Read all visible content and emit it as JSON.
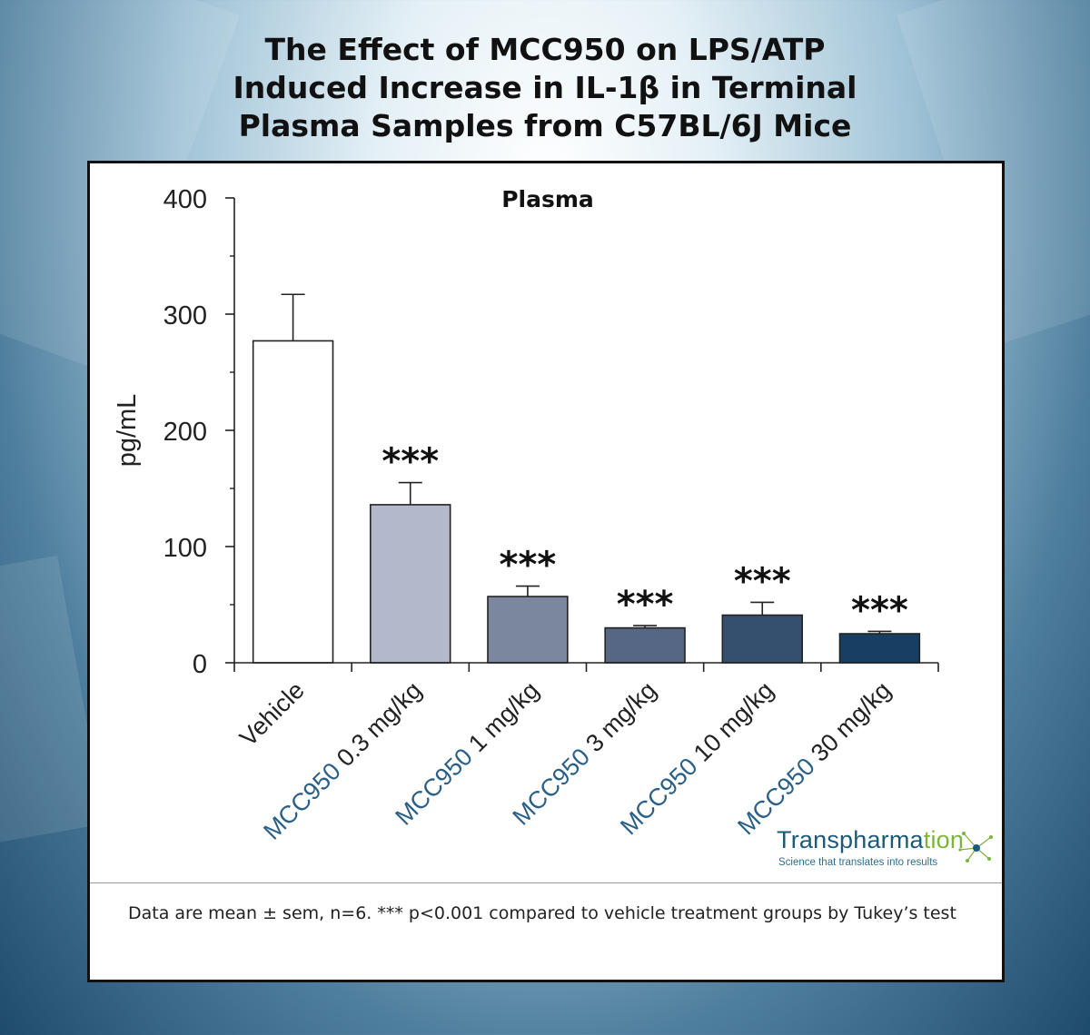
{
  "title_lines": [
    "The Effect of MCC950 on LPS/ATP",
    "Induced Increase in IL-1β in Terminal",
    "Plasma Samples from C57BL/6J Mice"
  ],
  "chart_data": {
    "type": "bar",
    "title": "Plasma",
    "ylabel": "pg/mL",
    "xlabel": "",
    "ylim": [
      0,
      400
    ],
    "yticks": [
      0,
      100,
      200,
      300,
      400
    ],
    "grid": false,
    "categories": [
      {
        "prefix": "",
        "label": "Vehicle"
      },
      {
        "prefix": "MCC950",
        "label": "0.3 mg/kg"
      },
      {
        "prefix": "MCC950",
        "label": "1 mg/kg"
      },
      {
        "prefix": "MCC950",
        "label": "3 mg/kg"
      },
      {
        "prefix": "MCC950",
        "label": "10 mg/kg"
      },
      {
        "prefix": "MCC950",
        "label": "30 mg/kg"
      }
    ],
    "values": [
      277,
      136,
      57,
      30,
      41,
      25
    ],
    "errors": [
      40,
      19,
      9,
      2,
      11,
      2
    ],
    "significance": [
      "",
      "***",
      "***",
      "***",
      "***",
      "***"
    ],
    "bar_colors": [
      "#ffffff",
      "#b3b8cb",
      "#7b879f",
      "#566785",
      "#35506f",
      "#163f63"
    ],
    "prefix_color": "#2a5f86"
  },
  "footnote": "Data are mean ± sem, n=6. *** p<0.001 compared to vehicle treatment groups by Tukey’s test",
  "logo": {
    "name_part1": "Transpharma",
    "name_part2": "tion",
    "tagline": "Science that translates into results"
  }
}
